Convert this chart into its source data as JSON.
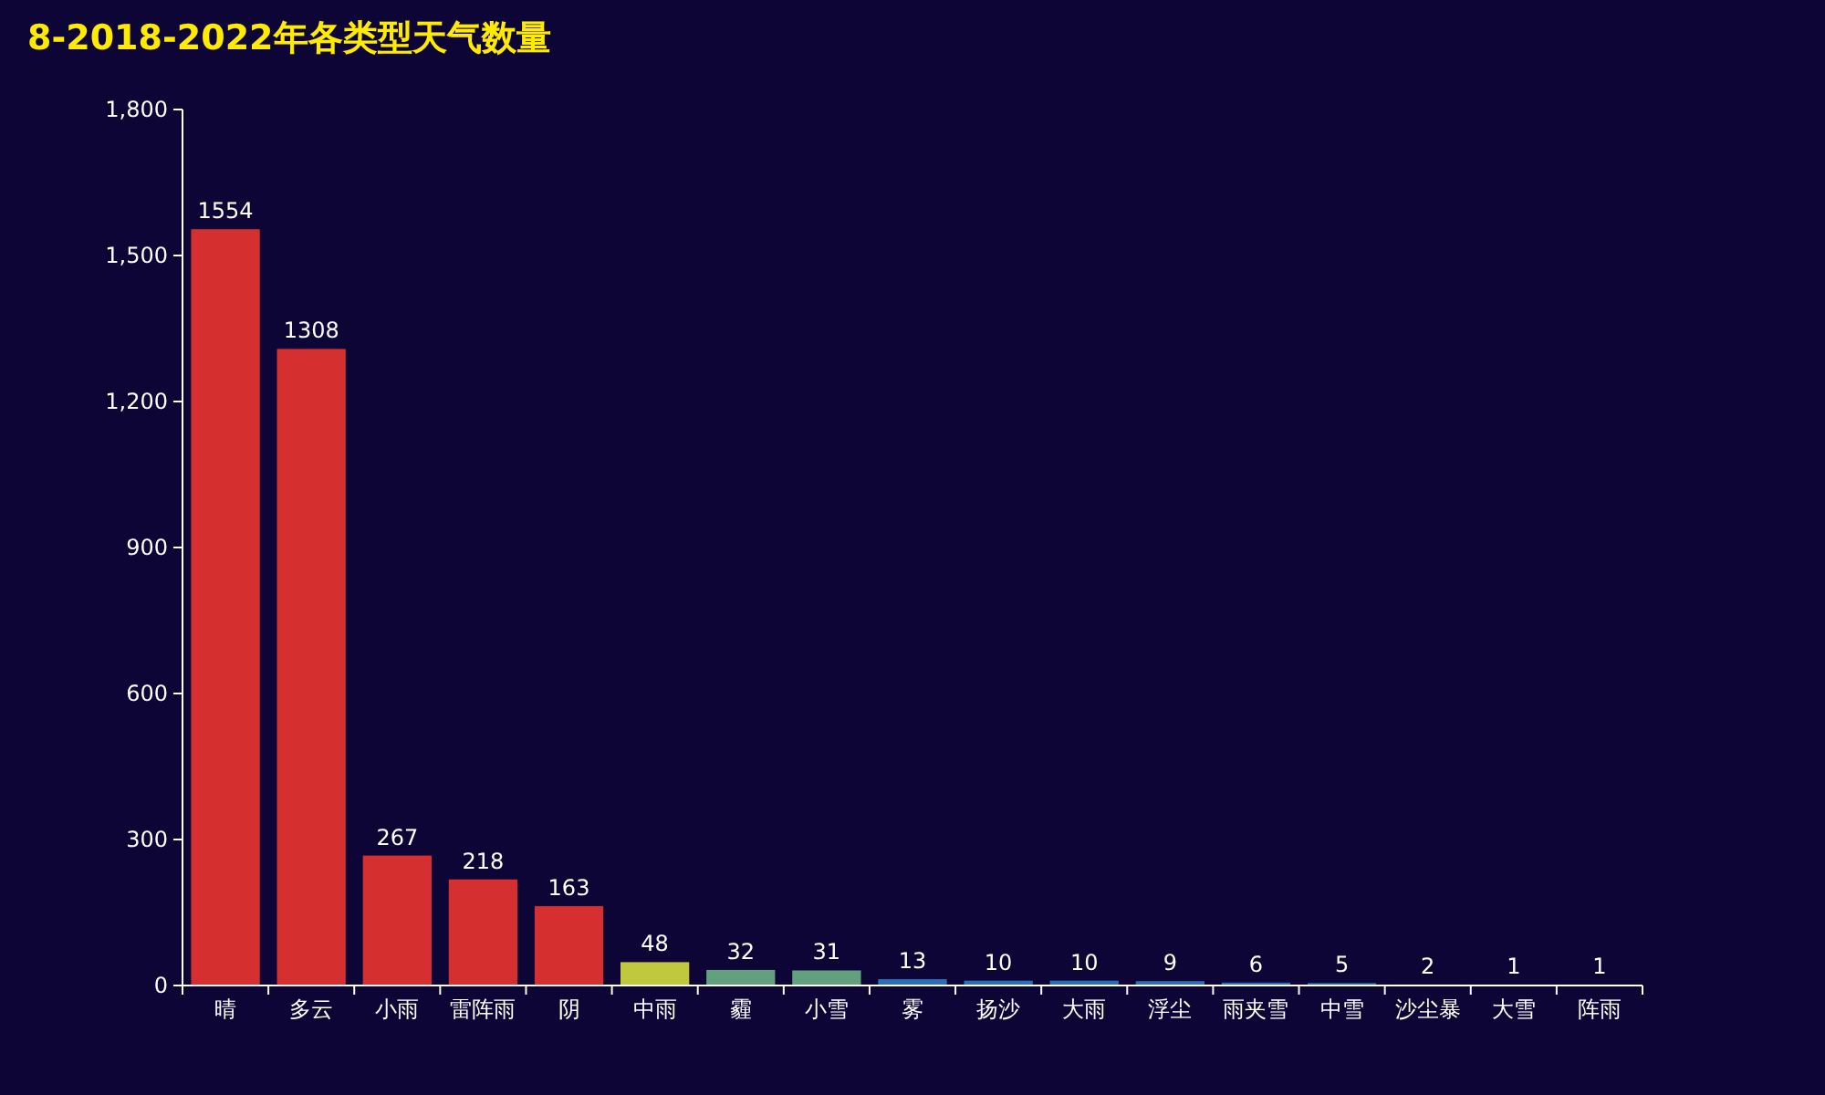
{
  "chart_data": {
    "type": "bar",
    "title": "8-2018-2022年各类型天气数量",
    "categories": [
      "晴",
      "多云",
      "小雨",
      "雷阵雨",
      "阴",
      "中雨",
      "霾",
      "小雪",
      "雾",
      "扬沙",
      "大雨",
      "浮尘",
      "雨夹雪",
      "中雪",
      "沙尘暴",
      "大雪",
      "阵雨"
    ],
    "values": [
      1554,
      1308,
      267,
      218,
      163,
      48,
      32,
      31,
      13,
      10,
      10,
      9,
      6,
      5,
      2,
      1,
      1
    ],
    "colors": [
      "#d62f2f",
      "#d62f2f",
      "#d62f2f",
      "#d62f2f",
      "#d62f2f",
      "#c0c83d",
      "#62a07e",
      "#62a07e",
      "#2b6fb8",
      "#2b6fb8",
      "#2b6fb8",
      "#2b6fb8",
      "#2b6fb8",
      "#2b6fb8",
      "#2b6fb8",
      "#2b6fb8",
      "#2b6fb8"
    ],
    "ylim": [
      0,
      1800
    ],
    "yticks": [
      {
        "value": 0,
        "label": "0"
      },
      {
        "value": 300,
        "label": "300"
      },
      {
        "value": 600,
        "label": "600"
      },
      {
        "value": 900,
        "label": "900"
      },
      {
        "value": 1200,
        "label": "1,200"
      },
      {
        "value": 1500,
        "label": "1,500"
      },
      {
        "value": 1800,
        "label": "1,800"
      }
    ],
    "data_labels": true
  }
}
